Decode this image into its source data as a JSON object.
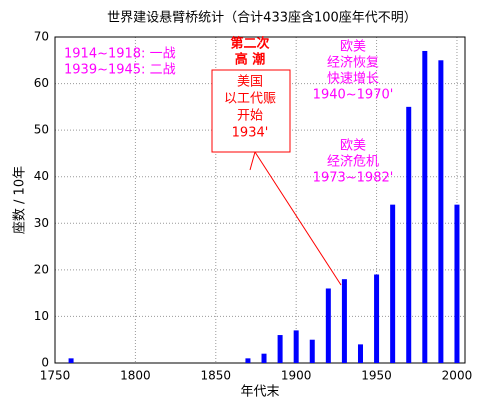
{
  "chart_data": {
    "type": "bar",
    "title": "世界建设悬臂桥统计（合计433座含100座年代不明）",
    "ylabel": "座数 / 10年",
    "xlabel": "年代末",
    "x": [
      1760,
      1870,
      1880,
      1890,
      1900,
      1910,
      1920,
      1930,
      1940,
      1950,
      1960,
      1970,
      1980,
      1990,
      2000
    ],
    "values": [
      1,
      1,
      2,
      6,
      7,
      5,
      16,
      18,
      4,
      19,
      34,
      55,
      67,
      65,
      34
    ],
    "color": "#0000ff",
    "xlim": [
      1750,
      2005
    ],
    "xticks": [
      1750,
      1800,
      1850,
      1900,
      1950,
      2000
    ],
    "ylim": [
      0,
      70
    ],
    "yticks": [
      0,
      10,
      20,
      30,
      40,
      50,
      60,
      70
    ],
    "grid": true,
    "annotations": [
      {
        "lines": [
          "1914~1918: 一战",
          "1939~1945: 二战"
        ],
        "color": "#ff00ff"
      },
      {
        "lines": [
          "第二次",
          "高  潮"
        ],
        "color": "#ff0000"
      },
      {
        "lines": [
          "美国",
          "以工代赈",
          "开始",
          "1934'"
        ],
        "color": "#ff0000"
      },
      {
        "lines": [
          "欧美",
          "经济恢复",
          "快速增长",
          "1940~1970'"
        ],
        "color": "#ff00ff"
      },
      {
        "lines": [
          "欧美",
          "经济危机",
          "1973~1982'"
        ],
        "color": "#ff00ff"
      }
    ]
  }
}
